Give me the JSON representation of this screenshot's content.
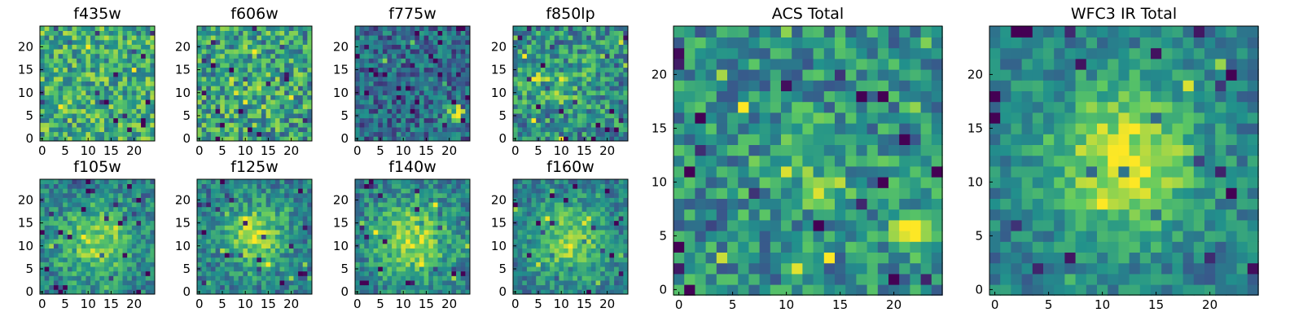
{
  "colormap": {
    "name": "viridis-like",
    "stops": [
      "#440154",
      "#3b528b",
      "#21918c",
      "#5ec962",
      "#fde725"
    ]
  },
  "chart_data": [
    {
      "type": "heatmap",
      "title": "f435w",
      "xlabel": "",
      "ylabel": "",
      "grid_size": [
        25,
        25
      ],
      "xlim": [
        -0.5,
        24.5
      ],
      "ylim": [
        -0.5,
        24.5
      ],
      "xticks": [
        0,
        5,
        10,
        15,
        20
      ],
      "yticks": [
        0,
        5,
        10,
        15,
        20
      ],
      "grid": false,
      "origin": "lower",
      "pattern": "mostly uniform noise, bright yellow-green overall",
      "base_level": 0.62,
      "noise_level": 0.28,
      "hotspots": []
    },
    {
      "type": "heatmap",
      "title": "f606w",
      "xlabel": "",
      "ylabel": "",
      "grid_size": [
        25,
        25
      ],
      "xlim": [
        -0.5,
        24.5
      ],
      "ylim": [
        -0.5,
        24.5
      ],
      "xticks": [
        0,
        5,
        10,
        15,
        20
      ],
      "yticks": [
        0,
        5,
        10,
        15,
        20
      ],
      "grid": false,
      "origin": "lower",
      "pattern": "noise with faint central brightening",
      "base_level": 0.56,
      "noise_level": 0.3,
      "hotspots": [
        {
          "x": 12,
          "y": 11,
          "radius": 5,
          "amplitude": 0.08
        }
      ]
    },
    {
      "type": "heatmap",
      "title": "f775w",
      "xlabel": "",
      "ylabel": "",
      "grid_size": [
        25,
        25
      ],
      "xlim": [
        -0.5,
        24.5
      ],
      "ylim": [
        -0.5,
        24.5
      ],
      "xticks": [
        0,
        5,
        10,
        15,
        20
      ],
      "yticks": [
        0,
        5,
        10,
        15,
        20
      ],
      "grid": false,
      "origin": "lower",
      "pattern": "darker teal-blue noise with compact yellow source lower right",
      "base_level": 0.35,
      "noise_level": 0.22,
      "hotspots": [
        {
          "x": 21.5,
          "y": 5.5,
          "radius": 1.5,
          "amplitude": 0.65
        }
      ]
    },
    {
      "type": "heatmap",
      "title": "f850lp",
      "xlabel": "",
      "ylabel": "",
      "grid_size": [
        25,
        25
      ],
      "xlim": [
        -0.5,
        24.5
      ],
      "ylim": [
        -0.5,
        24.5
      ],
      "xticks": [
        0,
        5,
        10,
        15,
        20
      ],
      "yticks": [
        0,
        5,
        10,
        15,
        20
      ],
      "grid": false,
      "origin": "lower",
      "pattern": "noise with several bright green-yellow patches",
      "base_level": 0.5,
      "noise_level": 0.28,
      "hotspots": [
        {
          "x": 4,
          "y": 12,
          "radius": 2,
          "amplitude": 0.25
        },
        {
          "x": 10,
          "y": 11,
          "radius": 3,
          "amplitude": 0.2
        },
        {
          "x": 17,
          "y": 17,
          "radius": 2,
          "amplitude": 0.2
        }
      ]
    },
    {
      "type": "heatmap",
      "title": "f105w",
      "xlabel": "",
      "ylabel": "",
      "grid_size": [
        25,
        25
      ],
      "xlim": [
        -0.5,
        24.5
      ],
      "ylim": [
        -0.5,
        24.5
      ],
      "xticks": [
        0,
        5,
        10,
        15,
        20
      ],
      "yticks": [
        0,
        5,
        10,
        15,
        20
      ],
      "grid": false,
      "origin": "lower",
      "pattern": "extended central source",
      "base_level": 0.42,
      "noise_level": 0.2,
      "hotspots": [
        {
          "x": 12,
          "y": 11,
          "radius": 6,
          "amplitude": 0.38
        }
      ]
    },
    {
      "type": "heatmap",
      "title": "f125w",
      "xlabel": "",
      "ylabel": "",
      "grid_size": [
        25,
        25
      ],
      "xlim": [
        -0.5,
        24.5
      ],
      "ylim": [
        -0.5,
        24.5
      ],
      "xticks": [
        0,
        5,
        10,
        15,
        20
      ],
      "yticks": [
        0,
        5,
        10,
        15,
        20
      ],
      "grid": false,
      "origin": "lower",
      "pattern": "extended central source",
      "base_level": 0.42,
      "noise_level": 0.2,
      "hotspots": [
        {
          "x": 12,
          "y": 12,
          "radius": 5,
          "amplitude": 0.42
        }
      ]
    },
    {
      "type": "heatmap",
      "title": "f140w",
      "xlabel": "",
      "ylabel": "",
      "grid_size": [
        25,
        25
      ],
      "xlim": [
        -0.5,
        24.5
      ],
      "ylim": [
        -0.5,
        24.5
      ],
      "xticks": [
        0,
        5,
        10,
        15,
        20
      ],
      "yticks": [
        0,
        5,
        10,
        15,
        20
      ],
      "grid": false,
      "origin": "lower",
      "pattern": "extended central source",
      "base_level": 0.42,
      "noise_level": 0.2,
      "hotspots": [
        {
          "x": 12,
          "y": 11,
          "radius": 6,
          "amplitude": 0.42
        }
      ]
    },
    {
      "type": "heatmap",
      "title": "f160w",
      "xlabel": "",
      "ylabel": "",
      "grid_size": [
        25,
        25
      ],
      "xlim": [
        -0.5,
        24.5
      ],
      "ylim": [
        -0.5,
        24.5
      ],
      "xticks": [
        0,
        5,
        10,
        15,
        20
      ],
      "yticks": [
        0,
        5,
        10,
        15,
        20
      ],
      "grid": false,
      "origin": "lower",
      "pattern": "extended central source",
      "base_level": 0.4,
      "noise_level": 0.18,
      "hotspots": [
        {
          "x": 12,
          "y": 11,
          "radius": 6,
          "amplitude": 0.4
        }
      ]
    },
    {
      "type": "heatmap",
      "title": "ACS Total",
      "xlabel": "",
      "ylabel": "",
      "grid_size": [
        25,
        25
      ],
      "xlim": [
        -0.5,
        24.5
      ],
      "ylim": [
        -0.5,
        24.5
      ],
      "xticks": [
        0,
        5,
        10,
        15,
        20
      ],
      "yticks": [
        0,
        5,
        10,
        15,
        20
      ],
      "grid": false,
      "origin": "lower",
      "pattern": "noise with central patch and bright compact source lower right",
      "base_level": 0.5,
      "noise_level": 0.24,
      "hotspots": [
        {
          "x": 11,
          "y": 12,
          "radius": 3,
          "amplitude": 0.18
        },
        {
          "x": 21.5,
          "y": 5.5,
          "radius": 1.5,
          "amplitude": 0.45
        },
        {
          "x": 14,
          "y": 9,
          "radius": 1,
          "amplitude": 0.28
        }
      ]
    },
    {
      "type": "heatmap",
      "title": "WFC3 IR Total",
      "xlabel": "",
      "ylabel": "",
      "grid_size": [
        25,
        25
      ],
      "xlim": [
        -0.5,
        24.5
      ],
      "ylim": [
        -0.5,
        24.5
      ],
      "xticks": [
        0,
        5,
        10,
        15,
        20
      ],
      "yticks": [
        0,
        5,
        10,
        15,
        20
      ],
      "grid": false,
      "origin": "lower",
      "pattern": "broad central source",
      "base_level": 0.42,
      "noise_level": 0.16,
      "hotspots": [
        {
          "x": 12,
          "y": 12,
          "radius": 5,
          "amplitude": 0.52
        }
      ]
    }
  ]
}
